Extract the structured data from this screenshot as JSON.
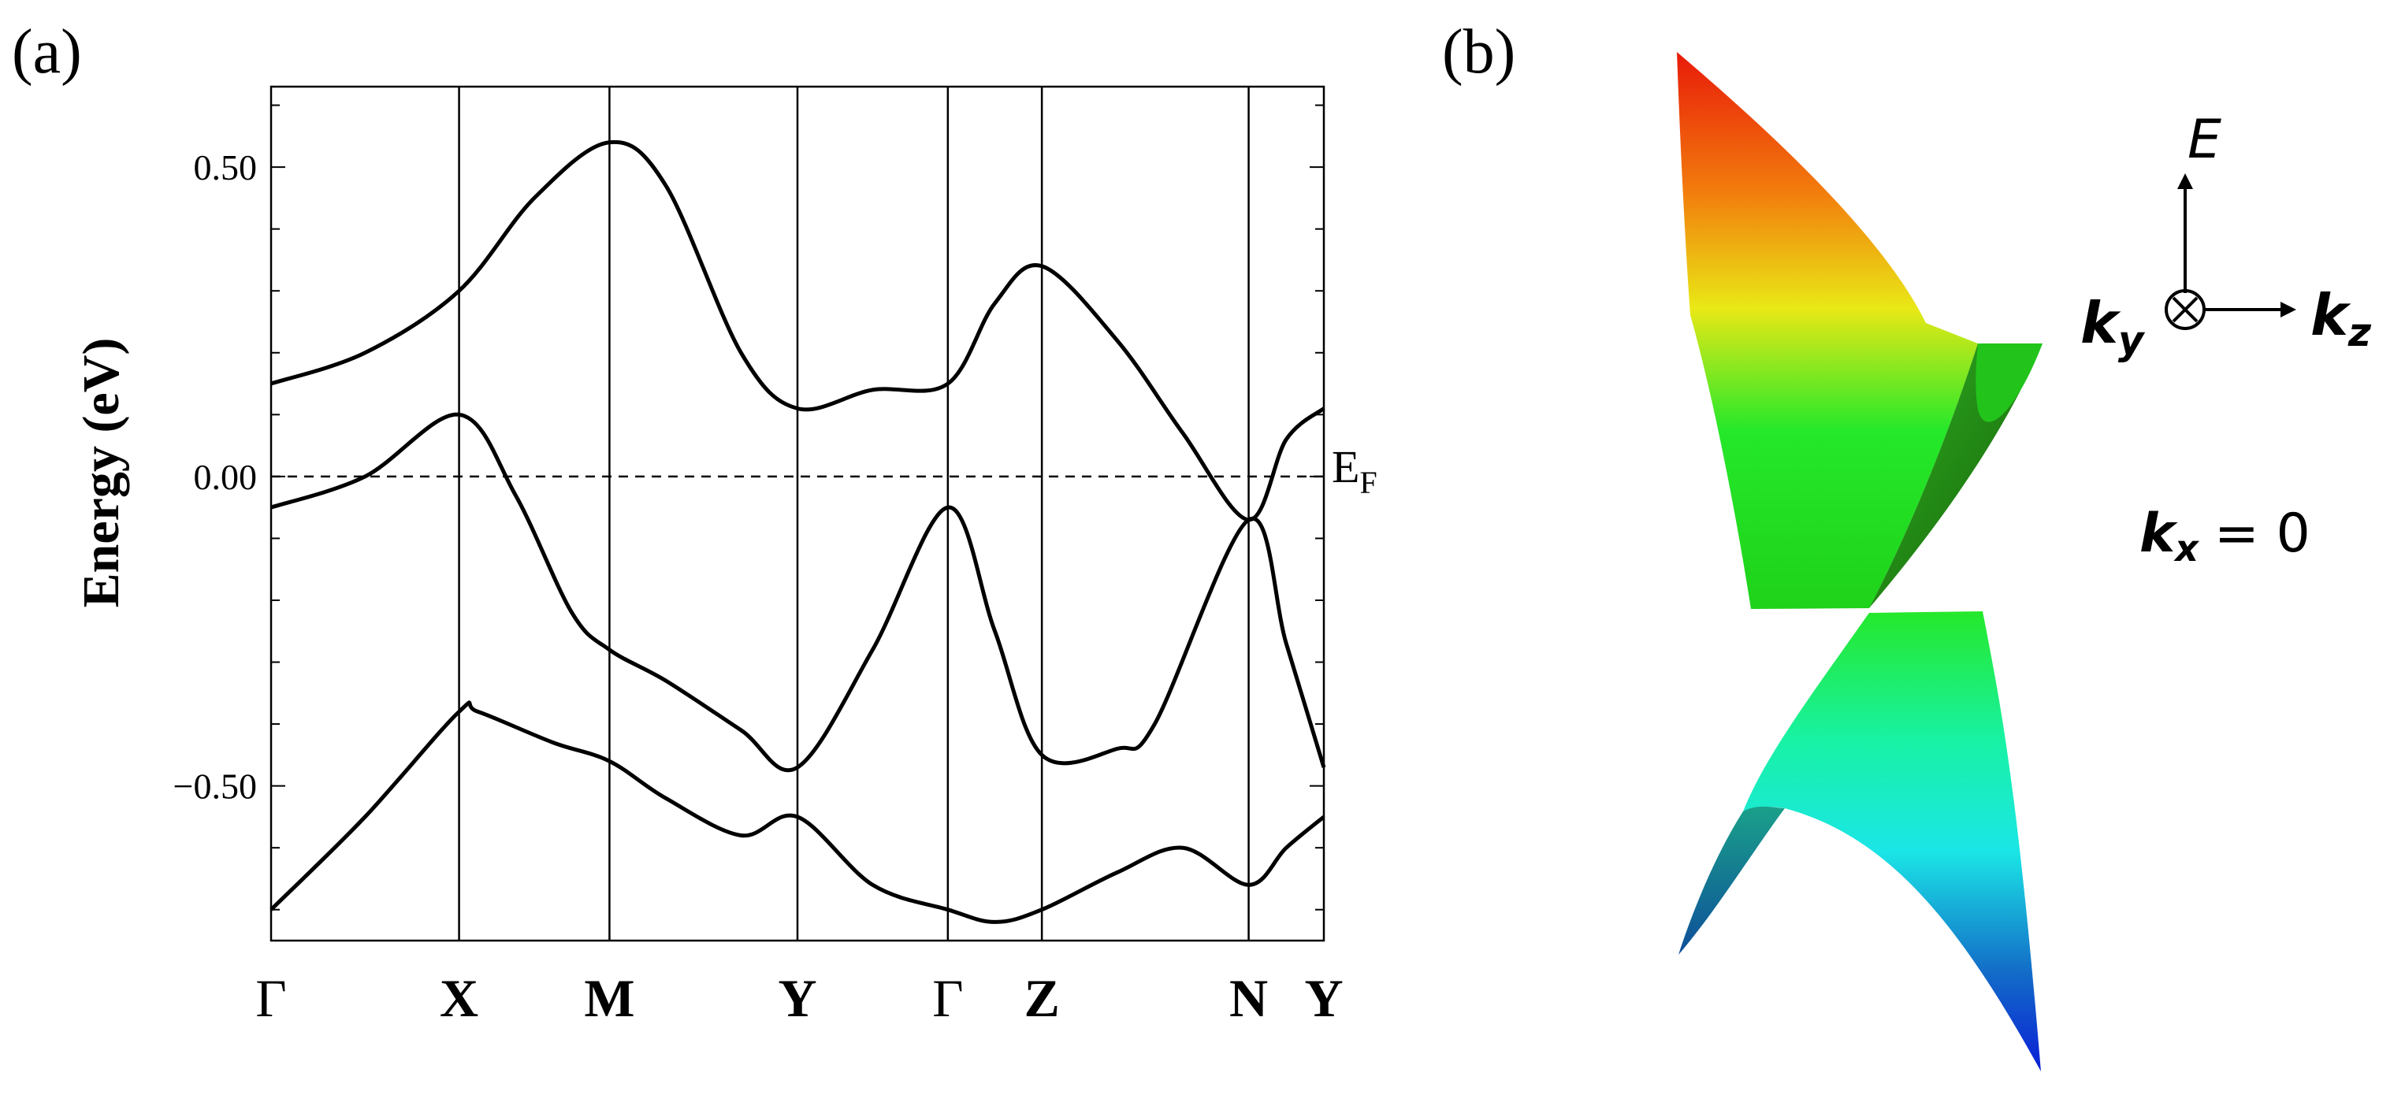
{
  "panel_a": {
    "label": "(a)",
    "fermi_label": "E",
    "fermi_subscript": "F"
  },
  "panel_b": {
    "label": "(b)",
    "axes": {
      "e_label": "E",
      "ky_label": "k",
      "ky_subscript": "y",
      "kz_label": "k",
      "kz_subscript": "z",
      "kx_label": "k",
      "kx_subscript": "x",
      "kx_value": "= 0"
    },
    "surface_colors": [
      "#e81a0a",
      "#f27c0c",
      "#e9e816",
      "#25e82a",
      "#1f7a12",
      "#18f2a4",
      "#1be6e6",
      "#136ec8",
      "#0a1fd6"
    ]
  },
  "chart_data": {
    "type": "line",
    "title": "",
    "xlabel": "",
    "ylabel": "Energy (eV)",
    "ylim": [
      -0.75,
      0.63
    ],
    "yticks": [
      -0.5,
      0.0,
      0.5
    ],
    "ytick_labels": [
      "−0.50",
      "0.00",
      "0.50"
    ],
    "fermi_level": 0.0,
    "k_points": [
      {
        "label": "Γ",
        "x": 0.0
      },
      {
        "label": "X",
        "x": 1.0
      },
      {
        "label": "M",
        "x": 1.8
      },
      {
        "label": "Y",
        "x": 2.8
      },
      {
        "label": "Γ",
        "x": 3.6
      },
      {
        "label": "Z",
        "x": 4.1
      },
      {
        "label": "N",
        "x": 5.2
      },
      {
        "label": "Y",
        "x": 5.6
      }
    ],
    "series": [
      {
        "name": "band 1",
        "x": [
          0.0,
          0.5,
          1.0,
          1.1,
          1.5,
          1.8,
          2.1,
          2.5,
          2.8,
          3.2,
          3.6,
          3.85,
          4.1,
          4.5,
          4.85,
          5.2,
          5.4,
          5.6
        ],
        "y": [
          -0.7,
          -0.55,
          -0.38,
          -0.38,
          -0.43,
          -0.46,
          -0.52,
          -0.58,
          -0.55,
          -0.66,
          -0.7,
          -0.72,
          -0.7,
          -0.64,
          -0.6,
          -0.66,
          -0.6,
          -0.55
        ]
      },
      {
        "name": "band 2",
        "x": [
          0.0,
          0.5,
          1.0,
          1.3,
          1.6,
          1.8,
          2.1,
          2.5,
          2.8,
          3.2,
          3.6,
          3.85,
          4.1,
          4.5,
          4.7,
          5.2,
          5.4,
          5.6
        ],
        "y": [
          -0.05,
          0.0,
          0.1,
          -0.03,
          -0.22,
          -0.28,
          -0.33,
          -0.41,
          -0.47,
          -0.28,
          -0.05,
          -0.25,
          -0.45,
          -0.44,
          -0.4,
          -0.07,
          -0.27,
          -0.47
        ]
      },
      {
        "name": "band 3",
        "x": [
          0.0,
          0.5,
          1.0,
          1.4,
          1.8,
          2.1,
          2.5,
          2.8,
          3.2,
          3.6,
          3.85,
          4.1,
          4.5,
          4.85,
          5.2,
          5.4,
          5.6
        ],
        "y": [
          0.15,
          0.2,
          0.3,
          0.45,
          0.54,
          0.47,
          0.2,
          0.11,
          0.14,
          0.15,
          0.28,
          0.34,
          0.22,
          0.07,
          -0.07,
          0.06,
          0.11
        ]
      }
    ]
  }
}
